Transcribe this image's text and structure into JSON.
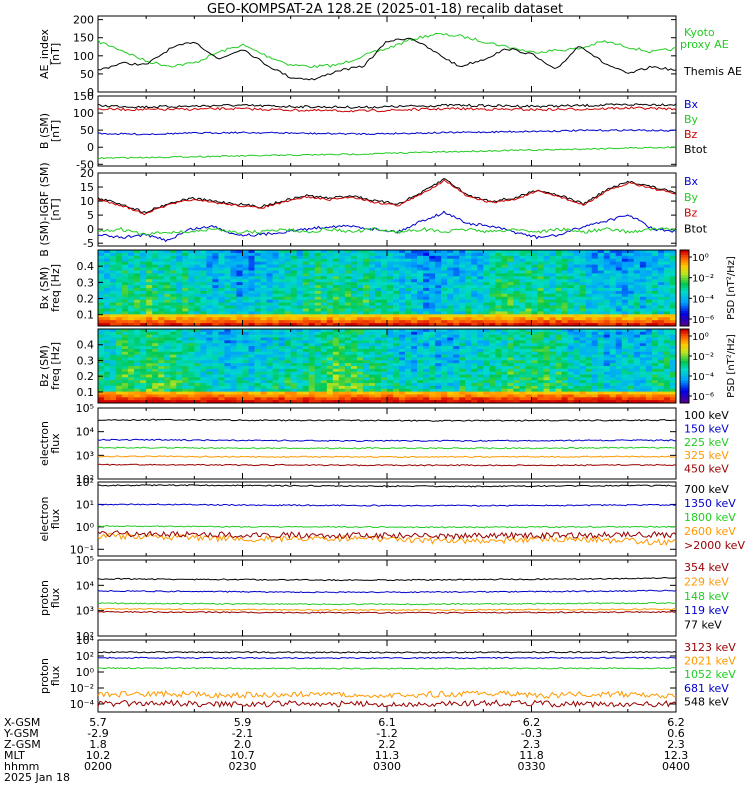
{
  "title": "GEO-KOMPSAT-2A 128.2E (2025-01-18) recalib dataset",
  "chart_data": [
    {
      "type": "line",
      "ylabel": [
        "AE_index",
        "[nT]"
      ],
      "yticks": [
        "0",
        "50",
        "100",
        "150",
        "200"
      ],
      "ylim": [
        0,
        210
      ],
      "legend": [
        {
          "text": "Kyoto",
          "color": "#22cc22"
        },
        {
          "text": "proxy AE",
          "color": "#22cc22"
        },
        {
          "text": "Themis AE",
          "color": "#000000"
        }
      ],
      "series": [
        {
          "name": "Kyoto proxy AE",
          "color": "#22cc22",
          "x": [
            0,
            5,
            10,
            15,
            20,
            25,
            30,
            35,
            40,
            45,
            50,
            55,
            60,
            65,
            70,
            75,
            80,
            85,
            90,
            95,
            100,
            105,
            110,
            115,
            120
          ],
          "values": [
            140,
            115,
            85,
            72,
            80,
            110,
            130,
            100,
            75,
            70,
            75,
            100,
            120,
            145,
            160,
            155,
            140,
            125,
            110,
            115,
            120,
            140,
            125,
            110,
            120
          ]
        },
        {
          "name": "Themis AE",
          "color": "#000000",
          "x": [
            0,
            5,
            10,
            15,
            20,
            25,
            30,
            35,
            40,
            45,
            50,
            55,
            60,
            65,
            70,
            75,
            80,
            85,
            90,
            95,
            100,
            105,
            110,
            115,
            120
          ],
          "values": [
            60,
            80,
            75,
            120,
            140,
            90,
            120,
            75,
            40,
            35,
            60,
            70,
            140,
            150,
            110,
            70,
            90,
            120,
            105,
            60,
            130,
            80,
            50,
            70,
            60
          ]
        }
      ]
    },
    {
      "type": "line",
      "ylabel": [
        "B (SM)",
        "[nT]"
      ],
      "yticks": [
        "-50",
        "0",
        "50",
        "100",
        "150"
      ],
      "ylim": [
        -55,
        150
      ],
      "legend": [
        {
          "text": "Bx",
          "color": "#0000cc"
        },
        {
          "text": "By",
          "color": "#22cc22"
        },
        {
          "text": "Bz",
          "color": "#cc0000"
        },
        {
          "text": "Btot",
          "color": "#000000"
        }
      ],
      "series": [
        {
          "name": "Btot",
          "color": "#000000",
          "values": [
            122,
            118,
            120,
            123,
            120,
            118,
            117,
            120,
            123,
            121,
            120,
            122,
            125,
            125
          ]
        },
        {
          "name": "Bz",
          "color": "#cc0000",
          "values": [
            112,
            110,
            111,
            113,
            110,
            107,
            106,
            110,
            113,
            111,
            110,
            112,
            115,
            112
          ]
        },
        {
          "name": "Bx",
          "color": "#0000cc",
          "values": [
            40,
            38,
            41,
            43,
            42,
            40,
            39,
            41,
            43,
            45,
            47,
            49,
            50,
            48
          ]
        },
        {
          "name": "By",
          "color": "#22cc22",
          "values": [
            -32,
            -30,
            -28,
            -26,
            -24,
            -22,
            -20,
            -16,
            -13,
            -10,
            -8,
            -5,
            -2,
            0
          ]
        }
      ]
    },
    {
      "type": "line",
      "ylabel": [
        "B (SM)-IGRF (SM)",
        "[nT]"
      ],
      "yticks": [
        "-5",
        "0",
        "5",
        "10",
        "15",
        "20"
      ],
      "ylim": [
        -6,
        20
      ],
      "legend": [
        {
          "text": "Bx",
          "color": "#0000cc"
        },
        {
          "text": "By",
          "color": "#22cc22"
        },
        {
          "text": "Bz",
          "color": "#cc0000"
        },
        {
          "text": "Btot",
          "color": "#000000"
        }
      ],
      "series": [
        {
          "name": "Btot",
          "color": "#000000",
          "values": [
            11,
            9,
            6,
            9,
            11,
            10,
            9,
            8,
            10,
            12,
            11,
            12,
            10,
            9,
            13,
            18,
            12,
            10,
            11,
            14,
            12,
            9,
            14,
            17,
            15,
            13
          ]
        },
        {
          "name": "Bz",
          "color": "#cc0000",
          "values": [
            10.5,
            8.5,
            5.5,
            8.5,
            10.5,
            9.5,
            8.5,
            7.5,
            9.5,
            11.5,
            10.5,
            11.5,
            9.5,
            8.5,
            12.5,
            17.5,
            11.5,
            9.5,
            10.5,
            13.5,
            11.5,
            8.5,
            13.5,
            16.5,
            14.5,
            12.5
          ]
        },
        {
          "name": "Bx",
          "color": "#0000cc",
          "values": [
            -2,
            -3,
            -2,
            -4,
            0,
            1,
            -2,
            -2,
            -1,
            0,
            1,
            1,
            0,
            -1,
            3,
            6,
            2,
            1,
            -1,
            -3,
            -2,
            1,
            3,
            5,
            0,
            -1
          ]
        },
        {
          "name": "By",
          "color": "#22cc22",
          "values": [
            -1,
            0,
            -2,
            -1,
            -1,
            0,
            -1,
            -1,
            0,
            -1,
            0,
            -1,
            0,
            -1,
            0,
            -1,
            0,
            -1,
            0,
            -1,
            0,
            -1,
            0,
            -1,
            0,
            0
          ]
        }
      ]
    },
    {
      "type": "heatmap",
      "ylabel": [
        "Bx (SM)",
        "freq [Hz]"
      ],
      "yticks": [
        "0.1",
        "0.2",
        "0.3",
        "0.4"
      ],
      "ylim": [
        0.03,
        0.5
      ],
      "colorbar_label": "PSD [nT²/Hz]",
      "colorbar_ticks": [
        "10⁰",
        "10⁻²",
        "10⁻⁴",
        "10⁻⁶"
      ]
    },
    {
      "type": "heatmap",
      "ylabel": [
        "Bz (SM)",
        "freq [Hz]"
      ],
      "yticks": [
        "0.1",
        "0.2",
        "0.3",
        "0.4"
      ],
      "ylim": [
        0.03,
        0.5
      ],
      "colorbar_label": "PSD [nT²/Hz]",
      "colorbar_ticks": [
        "10⁰",
        "10⁻²",
        "10⁻⁴",
        "10⁻⁶"
      ]
    },
    {
      "type": "line",
      "ylabel": [
        "electron",
        "flux"
      ],
      "yscale": "log",
      "yticks": [
        "10²",
        "10³",
        "10⁴",
        "10⁵"
      ],
      "ylim_log10": [
        2,
        5
      ],
      "legend": [
        {
          "text": "100 keV",
          "color": "#000000"
        },
        {
          "text": "150 keV",
          "color": "#0000cc"
        },
        {
          "text": "225 keV",
          "color": "#22cc22"
        },
        {
          "text": "325 keV",
          "color": "#ff9900"
        },
        {
          "text": "450 keV",
          "color": "#990000"
        }
      ],
      "series": [
        {
          "name": "100 keV",
          "color": "#000000",
          "values": [
            31000,
            32000,
            31000,
            30000,
            30000,
            29000,
            29000,
            30000,
            30000,
            31000
          ]
        },
        {
          "name": "150 keV",
          "color": "#0000cc",
          "values": [
            4500,
            4500,
            4300,
            4200,
            4100,
            4100,
            4100,
            4200,
            4300,
            4300
          ]
        },
        {
          "name": "225 keV",
          "color": "#22cc22",
          "values": [
            2100,
            2100,
            2000,
            2000,
            2000,
            2000,
            2000,
            2000,
            2100,
            2100
          ]
        },
        {
          "name": "325 keV",
          "color": "#ff9900",
          "values": [
            900,
            900,
            880,
            870,
            860,
            860,
            860,
            870,
            880,
            880
          ]
        },
        {
          "name": "450 keV",
          "color": "#990000",
          "values": [
            400,
            400,
            390,
            390,
            380,
            380,
            380,
            380,
            390,
            390
          ]
        }
      ]
    },
    {
      "type": "line",
      "ylabel": [
        "electron",
        "flux"
      ],
      "yscale": "log",
      "yticks": [
        "10⁻¹",
        "10⁰",
        "10¹",
        "10²"
      ],
      "ylim_log10": [
        -1.3,
        2
      ],
      "legend": [
        {
          "text": "700 keV",
          "color": "#000000"
        },
        {
          "text": "1350 keV",
          "color": "#0000cc"
        },
        {
          "text": "1800 keV",
          "color": "#22cc22"
        },
        {
          "text": "2600 keV",
          "color": "#ff9900"
        },
        {
          "text": ">2000 keV",
          "color": "#990000"
        }
      ],
      "series": [
        {
          "name": "700 keV",
          "color": "#000000",
          "values": [
            70,
            72,
            70,
            68,
            66,
            65,
            64,
            66,
            68,
            70
          ]
        },
        {
          "name": "1350 keV",
          "color": "#0000cc",
          "values": [
            10,
            10,
            9.5,
            9.2,
            9,
            8.8,
            8.8,
            9,
            9.3,
            9.5
          ]
        },
        {
          "name": "1800 keV",
          "color": "#22cc22",
          "values": [
            1.1,
            1.05,
            1.0,
            1.0,
            0.98,
            0.97,
            0.96,
            0.98,
            1.0,
            1.0
          ]
        },
        {
          "name": "2600 keV",
          "color": "#ff9900",
          "values": [
            0.4,
            0.35,
            0.3,
            0.28,
            0.3,
            0.25,
            0.22,
            0.3,
            0.25,
            0.2
          ]
        },
        {
          "name": ">2000 keV",
          "color": "#990000",
          "values": [
            0.5,
            0.48,
            0.45,
            0.43,
            0.42,
            0.4,
            0.4,
            0.42,
            0.44,
            0.45
          ]
        }
      ]
    },
    {
      "type": "line",
      "ylabel": [
        "proton",
        "flux"
      ],
      "yscale": "log",
      "yticks": [
        "10²",
        "10³",
        "10⁴",
        "10⁵"
      ],
      "ylim_log10": [
        2,
        5
      ],
      "legend": [
        {
          "text": "354 keV",
          "color": "#990000"
        },
        {
          "text": "229 keV",
          "color": "#ff9900"
        },
        {
          "text": "148 keV",
          "color": "#22cc22"
        },
        {
          "text": "119 keV",
          "color": "#0000cc"
        },
        {
          "text": "77 keV",
          "color": "#000000"
        }
      ],
      "series": [
        {
          "name": "77 keV",
          "color": "#000000",
          "values": [
            18000,
            17500,
            17000,
            16500,
            16000,
            16500,
            17000,
            17500,
            18000,
            20000
          ]
        },
        {
          "name": "119 keV",
          "color": "#0000cc",
          "values": [
            6000,
            5800,
            5600,
            5400,
            5300,
            5400,
            5500,
            5700,
            5900,
            6200
          ]
        },
        {
          "name": "148 keV",
          "color": "#22cc22",
          "values": [
            2000,
            1900,
            1850,
            1800,
            1800,
            1800,
            1850,
            1900,
            1950,
            2000
          ]
        },
        {
          "name": "229 keV",
          "color": "#ff9900",
          "values": [
            1200,
            1150,
            1100,
            1080,
            1060,
            1060,
            1080,
            1100,
            1120,
            1150
          ]
        },
        {
          "name": "354 keV",
          "color": "#990000",
          "values": [
            900,
            880,
            860,
            840,
            830,
            830,
            840,
            850,
            870,
            890
          ]
        }
      ]
    },
    {
      "type": "line",
      "ylabel": [
        "proton",
        "flux"
      ],
      "yscale": "log",
      "yticks": [
        "10⁻⁴",
        "10⁻²",
        "10⁰",
        "10²",
        "10⁴"
      ],
      "ylim_log10": [
        -5,
        4
      ],
      "legend": [
        {
          "text": "3123 keV",
          "color": "#990000"
        },
        {
          "text": "2021 keV",
          "color": "#ff9900"
        },
        {
          "text": "1052 keV",
          "color": "#22cc22"
        },
        {
          "text": "681 keV",
          "color": "#0000cc"
        },
        {
          "text": "548 keV",
          "color": "#000000"
        }
      ],
      "series": [
        {
          "name": "548 keV",
          "color": "#000000",
          "values": [
            300,
            300,
            290,
            280,
            280,
            280,
            290,
            300,
            300,
            300
          ]
        },
        {
          "name": "681 keV",
          "color": "#0000cc",
          "values": [
            60,
            58,
            56,
            55,
            55,
            55,
            56,
            58,
            59,
            60
          ]
        },
        {
          "name": "1052 keV",
          "color": "#22cc22",
          "values": [
            3,
            3,
            2.8,
            2.8,
            2.7,
            2.7,
            2.8,
            2.8,
            2.9,
            3
          ]
        },
        {
          "name": "2021 keV",
          "color": "#ff9900",
          "values": [
            0.0015,
            0.002,
            0.0012,
            0.0018,
            0.001,
            0.0015,
            0.002,
            0.0013,
            0.0017,
            0.0011
          ]
        },
        {
          "name": "3123 keV",
          "color": "#990000",
          "values": [
            0.0001,
            0.00015,
            8e-05,
            0.00012,
            0.0001,
            9e-05,
            0.00014,
            0.0001,
            8e-05,
            0.00012
          ]
        }
      ]
    }
  ],
  "xaxis": {
    "row_labels": [
      "X-GSM",
      "Y-GSM",
      "Z-GSM",
      "MLT",
      "hhmm"
    ],
    "columns": [
      [
        "5.7",
        "-2.9",
        "1.8",
        "10.2",
        "0200"
      ],
      [
        "5.9",
        "-2.1",
        "2.0",
        "10.7",
        "0230"
      ],
      [
        "6.1",
        "-1.2",
        "2.2",
        "11.3",
        "0300"
      ],
      [
        "6.2",
        "-0.3",
        "2.3",
        "11.8",
        "0330"
      ],
      [
        "6.2",
        "0.6",
        "2.3",
        "12.3",
        "0400"
      ]
    ],
    "date": "2025 Jan 18"
  }
}
